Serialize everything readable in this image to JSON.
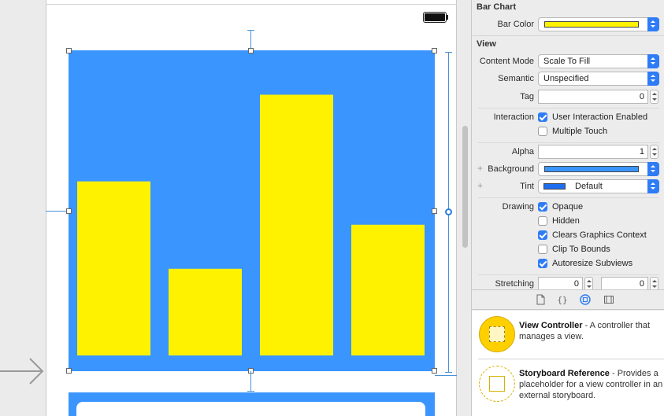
{
  "inspector": {
    "bar_chart": {
      "title": "Bar Chart",
      "bar_color_label": "Bar Color",
      "bar_color": "#fff200"
    },
    "view": {
      "title": "View",
      "content_mode_label": "Content Mode",
      "content_mode_value": "Scale To Fill",
      "semantic_label": "Semantic",
      "semantic_value": "Unspecified",
      "tag_label": "Tag",
      "tag_value": "0",
      "interaction_label": "Interaction",
      "user_interaction_label": "User Interaction Enabled",
      "user_interaction_checked": true,
      "multiple_touch_label": "Multiple Touch",
      "multiple_touch_checked": false,
      "alpha_label": "Alpha",
      "alpha_value": "1",
      "background_label": "Background",
      "background_color": "#3a95ff",
      "tint_label": "Tint",
      "tint_value": "Default",
      "tint_color": "#1f6ef0",
      "drawing_label": "Drawing",
      "opaque_label": "Opaque",
      "opaque_checked": true,
      "hidden_label": "Hidden",
      "hidden_checked": false,
      "clears_label": "Clears Graphics Context",
      "clears_checked": true,
      "clip_label": "Clip To Bounds",
      "clip_checked": false,
      "autoresize_label": "Autoresize Subviews",
      "autoresize_checked": true,
      "stretching_label": "Stretching",
      "stretch_x": "0",
      "stretch_y": "0"
    }
  },
  "library": {
    "tabs": [
      "file-icon",
      "braces-icon",
      "object-icon",
      "media-icon"
    ],
    "items": [
      {
        "name": "View Controller",
        "desc": " - A controller that manages a view."
      },
      {
        "name": "Storyboard Reference",
        "desc": " - Provides a placeholder for a view controller in an external storyboard."
      }
    ]
  },
  "chart_data": {
    "type": "bar",
    "categories": [
      "",
      "",
      "",
      ""
    ],
    "values": [
      245,
      122,
      367,
      184
    ],
    "ylim": [
      0,
      408
    ],
    "bar_color": "#fff200",
    "background": "#3a95ff",
    "grid": false
  }
}
